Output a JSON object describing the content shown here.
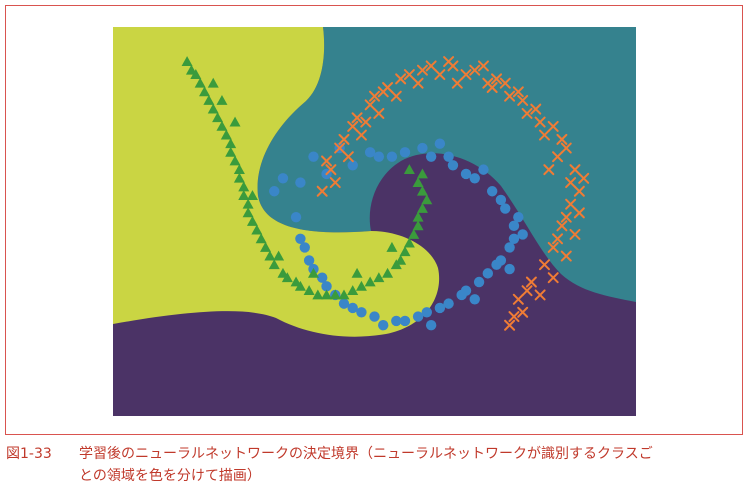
{
  "caption": {
    "number": "図1-33",
    "text_line1": "学習後のニューラルネットワークの決定境界（ニューラルネットワークが識別するクラスご",
    "text_line2": "との領域を色を分けて描画）"
  },
  "chart_data": {
    "type": "scatter",
    "title": "",
    "xlabel": "",
    "ylabel": "",
    "grid": false,
    "axes_visible": false,
    "region_colors": {
      "class_0": "#4b3366",
      "class_1": "#35828e",
      "class_2": "#cad543"
    },
    "series": [
      {
        "class": "class_0",
        "marker": "circle",
        "color": "#3a86c8",
        "points": [
          [
            0.22,
            0.22
          ],
          [
            0.28,
            0.24
          ],
          [
            0.34,
            0.26
          ],
          [
            0.4,
            0.28
          ],
          [
            0.46,
            0.3
          ],
          [
            0.52,
            0.31
          ],
          [
            0.58,
            0.3
          ],
          [
            0.63,
            0.28
          ],
          [
            0.68,
            0.25
          ],
          [
            0.72,
            0.22
          ],
          [
            0.75,
            0.18
          ],
          [
            0.77,
            0.14
          ],
          [
            0.76,
            0.09
          ],
          [
            0.73,
            0.05
          ],
          [
            0.69,
            0.01
          ],
          [
            0.65,
            -0.02
          ],
          [
            0.6,
            -0.05
          ],
          [
            0.55,
            -0.07
          ],
          [
            0.5,
            -0.08
          ],
          [
            0.45,
            -0.07
          ],
          [
            0.4,
            -0.05
          ],
          [
            0.36,
            -0.02
          ],
          [
            0.33,
            0.02
          ],
          [
            0.3,
            0.06
          ],
          [
            0.28,
            0.11
          ],
          [
            0.27,
            0.16
          ],
          [
            0.44,
            0.31
          ],
          [
            0.56,
            0.32
          ],
          [
            0.66,
            0.26
          ],
          [
            0.74,
            0.2
          ],
          [
            0.77,
            0.11
          ],
          [
            0.71,
            0.03
          ],
          [
            0.62,
            -0.04
          ],
          [
            0.52,
            -0.08
          ],
          [
            0.42,
            -0.06
          ],
          [
            0.34,
            0.0
          ],
          [
            0.29,
            0.09
          ],
          [
            0.31,
            0.3
          ],
          [
            0.37,
            0.32
          ],
          [
            0.6,
            0.33
          ],
          [
            0.7,
            0.27
          ],
          [
            0.78,
            0.16
          ],
          [
            0.74,
            0.06
          ],
          [
            0.66,
            -0.01
          ],
          [
            0.57,
            -0.06
          ],
          [
            0.47,
            -0.09
          ],
          [
            0.38,
            -0.04
          ],
          [
            0.31,
            0.04
          ],
          [
            0.24,
            0.25
          ],
          [
            0.49,
            0.3
          ],
          [
            0.76,
            0.04
          ],
          [
            0.62,
            0.3
          ],
          [
            0.68,
            -0.03
          ],
          [
            0.79,
            0.12
          ],
          [
            0.58,
            -0.09
          ]
        ]
      },
      {
        "class": "class_1",
        "marker": "x",
        "color": "#f07c35",
        "points": [
          [
            0.33,
            0.22
          ],
          [
            0.35,
            0.27
          ],
          [
            0.37,
            0.32
          ],
          [
            0.4,
            0.37
          ],
          [
            0.44,
            0.42
          ],
          [
            0.48,
            0.46
          ],
          [
            0.53,
            0.49
          ],
          [
            0.58,
            0.51
          ],
          [
            0.63,
            0.51
          ],
          [
            0.68,
            0.5
          ],
          [
            0.73,
            0.48
          ],
          [
            0.78,
            0.45
          ],
          [
            0.82,
            0.41
          ],
          [
            0.86,
            0.37
          ],
          [
            0.89,
            0.32
          ],
          [
            0.91,
            0.27
          ],
          [
            0.92,
            0.22
          ],
          [
            0.92,
            0.17
          ],
          [
            0.91,
            0.12
          ],
          [
            0.89,
            0.07
          ],
          [
            0.86,
            0.02
          ],
          [
            0.83,
            -0.02
          ],
          [
            0.79,
            -0.06
          ],
          [
            0.76,
            -0.09
          ],
          [
            0.36,
            0.24
          ],
          [
            0.39,
            0.3
          ],
          [
            0.42,
            0.35
          ],
          [
            0.46,
            0.4
          ],
          [
            0.5,
            0.44
          ],
          [
            0.55,
            0.47
          ],
          [
            0.6,
            0.49
          ],
          [
            0.66,
            0.49
          ],
          [
            0.71,
            0.47
          ],
          [
            0.76,
            0.44
          ],
          [
            0.8,
            0.4
          ],
          [
            0.84,
            0.35
          ],
          [
            0.87,
            0.3
          ],
          [
            0.9,
            0.24
          ],
          [
            0.9,
            0.19
          ],
          [
            0.88,
            0.14
          ],
          [
            0.86,
            0.09
          ],
          [
            0.84,
            0.05
          ],
          [
            0.81,
            0.01
          ],
          [
            0.78,
            -0.03
          ],
          [
            0.34,
            0.29
          ],
          [
            0.38,
            0.34
          ],
          [
            0.41,
            0.39
          ],
          [
            0.45,
            0.44
          ],
          [
            0.51,
            0.48
          ],
          [
            0.56,
            0.5
          ],
          [
            0.62,
            0.52
          ],
          [
            0.7,
            0.51
          ],
          [
            0.75,
            0.47
          ],
          [
            0.79,
            0.43
          ],
          [
            0.83,
            0.38
          ],
          [
            0.88,
            0.34
          ],
          [
            0.93,
            0.25
          ],
          [
            0.89,
            0.16
          ],
          [
            0.87,
            0.11
          ],
          [
            0.8,
            -0.01
          ],
          [
            0.77,
            -0.07
          ],
          [
            0.72,
            0.46
          ],
          [
            0.64,
            0.47
          ],
          [
            0.47,
            0.45
          ],
          [
            0.43,
            0.38
          ],
          [
            0.85,
            0.27
          ]
        ]
      },
      {
        "class": "class_2",
        "marker": "triangle",
        "color": "#3a9b3c",
        "points": [
          [
            0.02,
            0.52
          ],
          [
            0.04,
            0.49
          ],
          [
            0.06,
            0.45
          ],
          [
            0.08,
            0.41
          ],
          [
            0.1,
            0.37
          ],
          [
            0.12,
            0.33
          ],
          [
            0.13,
            0.29
          ],
          [
            0.14,
            0.25
          ],
          [
            0.15,
            0.21
          ],
          [
            0.16,
            0.17
          ],
          [
            0.18,
            0.13
          ],
          [
            0.2,
            0.09
          ],
          [
            0.22,
            0.05
          ],
          [
            0.25,
            0.02
          ],
          [
            0.28,
            0.0
          ],
          [
            0.32,
            -0.02
          ],
          [
            0.36,
            -0.02
          ],
          [
            0.4,
            -0.01
          ],
          [
            0.44,
            0.01
          ],
          [
            0.48,
            0.03
          ],
          [
            0.51,
            0.06
          ],
          [
            0.53,
            0.1
          ],
          [
            0.55,
            0.14
          ],
          [
            0.56,
            0.18
          ],
          [
            0.56,
            0.22
          ],
          [
            0.56,
            0.26
          ],
          [
            0.03,
            0.5
          ],
          [
            0.05,
            0.47
          ],
          [
            0.07,
            0.43
          ],
          [
            0.09,
            0.39
          ],
          [
            0.11,
            0.35
          ],
          [
            0.12,
            0.31
          ],
          [
            0.14,
            0.27
          ],
          [
            0.15,
            0.23
          ],
          [
            0.16,
            0.19
          ],
          [
            0.17,
            0.15
          ],
          [
            0.19,
            0.11
          ],
          [
            0.21,
            0.07
          ],
          [
            0.24,
            0.03
          ],
          [
            0.27,
            0.01
          ],
          [
            0.3,
            -0.01
          ],
          [
            0.34,
            -0.02
          ],
          [
            0.38,
            -0.02
          ],
          [
            0.42,
            0.0
          ],
          [
            0.46,
            0.02
          ],
          [
            0.5,
            0.05
          ],
          [
            0.52,
            0.08
          ],
          [
            0.54,
            0.12
          ],
          [
            0.55,
            0.16
          ],
          [
            0.57,
            0.2
          ],
          [
            0.55,
            0.24
          ],
          [
            0.53,
            0.27
          ],
          [
            0.1,
            0.43
          ],
          [
            0.08,
            0.47
          ],
          [
            0.13,
            0.38
          ],
          [
            0.17,
            0.21
          ],
          [
            0.23,
            0.07
          ],
          [
            0.31,
            0.03
          ],
          [
            0.41,
            0.03
          ],
          [
            0.49,
            0.09
          ]
        ]
      }
    ]
  }
}
